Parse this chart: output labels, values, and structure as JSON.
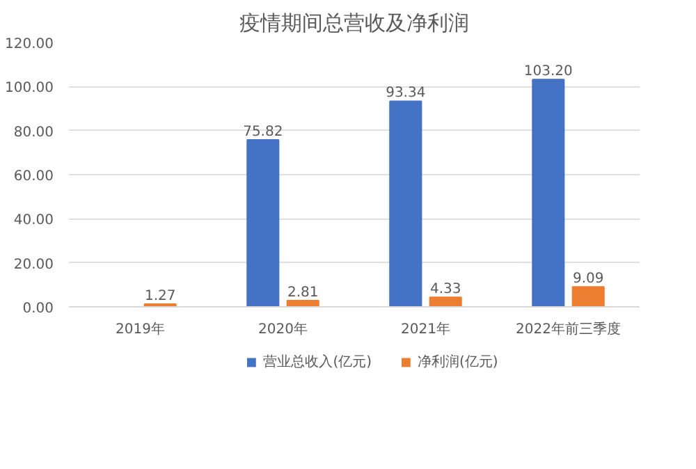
{
  "chart_data": {
    "type": "bar",
    "title": "疫情期间总营收及净利润",
    "categories": [
      "2019年",
      "2020年",
      "2021年",
      "2022年前三季度"
    ],
    "series": [
      {
        "name": "营业总收入(亿元)",
        "color": "#4472c4",
        "values": [
          null,
          75.82,
          93.34,
          103.2
        ],
        "value_labels": [
          null,
          "75.82",
          "93.34",
          "103.20"
        ]
      },
      {
        "name": "净利润(亿元)",
        "color": "#ed7d31",
        "values": [
          1.27,
          2.81,
          4.33,
          9.09
        ],
        "value_labels": [
          "1.27",
          "2.81",
          "4.33",
          "9.09"
        ]
      }
    ],
    "ylim": [
      0,
      120
    ],
    "yticks": [
      {
        "value": 0,
        "label": "0.00"
      },
      {
        "value": 20,
        "label": "20.00"
      },
      {
        "value": 40,
        "label": "40.00"
      },
      {
        "value": 60,
        "label": "60.00"
      },
      {
        "value": 80,
        "label": "80.00"
      },
      {
        "value": 100,
        "label": "100.00"
      },
      {
        "value": 120,
        "label": "120.00"
      }
    ],
    "grid": "y",
    "legend": "bottom"
  }
}
